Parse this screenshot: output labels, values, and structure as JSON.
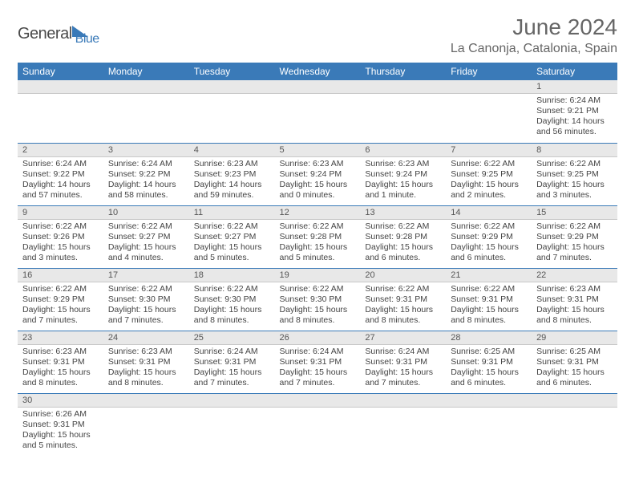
{
  "brand": {
    "name1": "General",
    "name2": "Blue"
  },
  "title": "June 2024",
  "location": "La Canonja, Catalonia, Spain",
  "colors": {
    "header_bg": "#3a7ab8",
    "daynum_bg": "#e8e8e8",
    "border": "#3a7ab8",
    "text": "#444"
  },
  "daysOfWeek": [
    "Sunday",
    "Monday",
    "Tuesday",
    "Wednesday",
    "Thursday",
    "Friday",
    "Saturday"
  ],
  "weeks": [
    [
      null,
      null,
      null,
      null,
      null,
      null,
      {
        "n": "1",
        "sr": "Sunrise: 6:24 AM",
        "ss": "Sunset: 9:21 PM",
        "dl": "Daylight: 14 hours and 56 minutes."
      }
    ],
    [
      {
        "n": "2",
        "sr": "Sunrise: 6:24 AM",
        "ss": "Sunset: 9:22 PM",
        "dl": "Daylight: 14 hours and 57 minutes."
      },
      {
        "n": "3",
        "sr": "Sunrise: 6:24 AM",
        "ss": "Sunset: 9:22 PM",
        "dl": "Daylight: 14 hours and 58 minutes."
      },
      {
        "n": "4",
        "sr": "Sunrise: 6:23 AM",
        "ss": "Sunset: 9:23 PM",
        "dl": "Daylight: 14 hours and 59 minutes."
      },
      {
        "n": "5",
        "sr": "Sunrise: 6:23 AM",
        "ss": "Sunset: 9:24 PM",
        "dl": "Daylight: 15 hours and 0 minutes."
      },
      {
        "n": "6",
        "sr": "Sunrise: 6:23 AM",
        "ss": "Sunset: 9:24 PM",
        "dl": "Daylight: 15 hours and 1 minute."
      },
      {
        "n": "7",
        "sr": "Sunrise: 6:22 AM",
        "ss": "Sunset: 9:25 PM",
        "dl": "Daylight: 15 hours and 2 minutes."
      },
      {
        "n": "8",
        "sr": "Sunrise: 6:22 AM",
        "ss": "Sunset: 9:25 PM",
        "dl": "Daylight: 15 hours and 3 minutes."
      }
    ],
    [
      {
        "n": "9",
        "sr": "Sunrise: 6:22 AM",
        "ss": "Sunset: 9:26 PM",
        "dl": "Daylight: 15 hours and 3 minutes."
      },
      {
        "n": "10",
        "sr": "Sunrise: 6:22 AM",
        "ss": "Sunset: 9:27 PM",
        "dl": "Daylight: 15 hours and 4 minutes."
      },
      {
        "n": "11",
        "sr": "Sunrise: 6:22 AM",
        "ss": "Sunset: 9:27 PM",
        "dl": "Daylight: 15 hours and 5 minutes."
      },
      {
        "n": "12",
        "sr": "Sunrise: 6:22 AM",
        "ss": "Sunset: 9:28 PM",
        "dl": "Daylight: 15 hours and 5 minutes."
      },
      {
        "n": "13",
        "sr": "Sunrise: 6:22 AM",
        "ss": "Sunset: 9:28 PM",
        "dl": "Daylight: 15 hours and 6 minutes."
      },
      {
        "n": "14",
        "sr": "Sunrise: 6:22 AM",
        "ss": "Sunset: 9:29 PM",
        "dl": "Daylight: 15 hours and 6 minutes."
      },
      {
        "n": "15",
        "sr": "Sunrise: 6:22 AM",
        "ss": "Sunset: 9:29 PM",
        "dl": "Daylight: 15 hours and 7 minutes."
      }
    ],
    [
      {
        "n": "16",
        "sr": "Sunrise: 6:22 AM",
        "ss": "Sunset: 9:29 PM",
        "dl": "Daylight: 15 hours and 7 minutes."
      },
      {
        "n": "17",
        "sr": "Sunrise: 6:22 AM",
        "ss": "Sunset: 9:30 PM",
        "dl": "Daylight: 15 hours and 7 minutes."
      },
      {
        "n": "18",
        "sr": "Sunrise: 6:22 AM",
        "ss": "Sunset: 9:30 PM",
        "dl": "Daylight: 15 hours and 8 minutes."
      },
      {
        "n": "19",
        "sr": "Sunrise: 6:22 AM",
        "ss": "Sunset: 9:30 PM",
        "dl": "Daylight: 15 hours and 8 minutes."
      },
      {
        "n": "20",
        "sr": "Sunrise: 6:22 AM",
        "ss": "Sunset: 9:31 PM",
        "dl": "Daylight: 15 hours and 8 minutes."
      },
      {
        "n": "21",
        "sr": "Sunrise: 6:22 AM",
        "ss": "Sunset: 9:31 PM",
        "dl": "Daylight: 15 hours and 8 minutes."
      },
      {
        "n": "22",
        "sr": "Sunrise: 6:23 AM",
        "ss": "Sunset: 9:31 PM",
        "dl": "Daylight: 15 hours and 8 minutes."
      }
    ],
    [
      {
        "n": "23",
        "sr": "Sunrise: 6:23 AM",
        "ss": "Sunset: 9:31 PM",
        "dl": "Daylight: 15 hours and 8 minutes."
      },
      {
        "n": "24",
        "sr": "Sunrise: 6:23 AM",
        "ss": "Sunset: 9:31 PM",
        "dl": "Daylight: 15 hours and 8 minutes."
      },
      {
        "n": "25",
        "sr": "Sunrise: 6:24 AM",
        "ss": "Sunset: 9:31 PM",
        "dl": "Daylight: 15 hours and 7 minutes."
      },
      {
        "n": "26",
        "sr": "Sunrise: 6:24 AM",
        "ss": "Sunset: 9:31 PM",
        "dl": "Daylight: 15 hours and 7 minutes."
      },
      {
        "n": "27",
        "sr": "Sunrise: 6:24 AM",
        "ss": "Sunset: 9:31 PM",
        "dl": "Daylight: 15 hours and 7 minutes."
      },
      {
        "n": "28",
        "sr": "Sunrise: 6:25 AM",
        "ss": "Sunset: 9:31 PM",
        "dl": "Daylight: 15 hours and 6 minutes."
      },
      {
        "n": "29",
        "sr": "Sunrise: 6:25 AM",
        "ss": "Sunset: 9:31 PM",
        "dl": "Daylight: 15 hours and 6 minutes."
      }
    ],
    [
      {
        "n": "30",
        "sr": "Sunrise: 6:26 AM",
        "ss": "Sunset: 9:31 PM",
        "dl": "Daylight: 15 hours and 5 minutes."
      },
      null,
      null,
      null,
      null,
      null,
      null
    ]
  ]
}
